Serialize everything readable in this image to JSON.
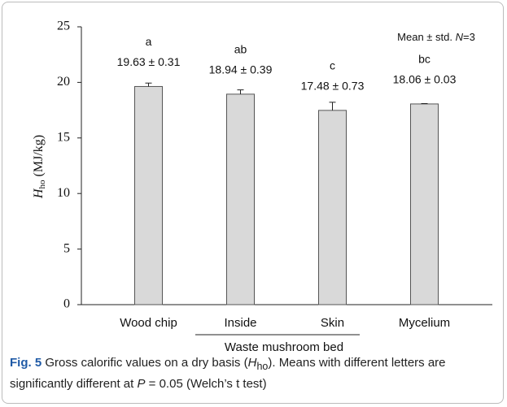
{
  "chart_data": {
    "type": "bar",
    "categories": [
      "Wood chip",
      "Inside",
      "Skin",
      "Mycelium"
    ],
    "values": [
      19.63,
      18.94,
      17.48,
      18.06
    ],
    "errors": [
      0.31,
      0.39,
      0.73,
      0.03
    ],
    "value_labels": [
      "19.63 ± 0.31",
      "18.94 ± 0.39",
      "17.48 ± 0.73",
      "18.06 ± 0.03"
    ],
    "letters": [
      "a",
      "ab",
      "c",
      "bc"
    ],
    "group_label": "Waste mushroom bed",
    "annotation_parts": [
      "Mean ± std. ",
      "N",
      "=3"
    ],
    "y_label_parts": [
      "H",
      "ho",
      " (MJ/kg)"
    ],
    "color": "#d9d9d9",
    "ylim": [
      0,
      25
    ],
    "yticks": [
      0,
      5,
      10,
      15,
      20,
      25
    ],
    "grid": false
  },
  "caption_parts": [
    "Fig. 5",
    " Gross calorific values on a dry basis (",
    "H",
    "ho",
    "). Means with different letters are significantly different at ",
    "P",
    " = 0.05 (Welch’s t test)"
  ]
}
